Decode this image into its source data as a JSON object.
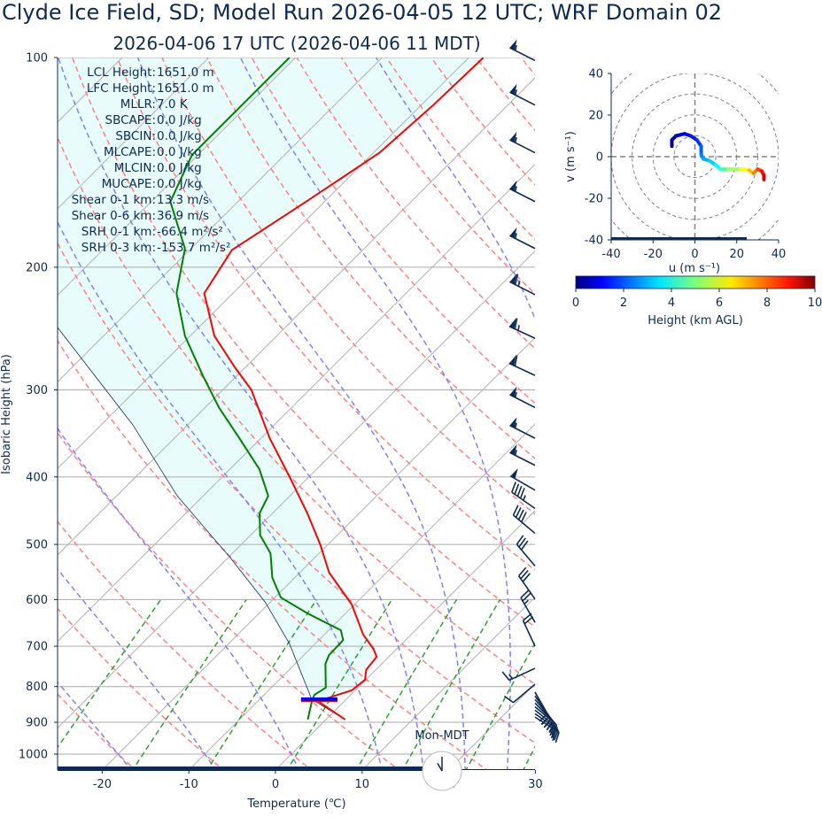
{
  "header": {
    "title": "Clyde Ice Field, SD; Model Run 2026-04-05 12 UTC; WRF Domain 02",
    "subtitle": "2026-04-06 17 UTC  (2026-04-06 11 MDT)"
  },
  "stats": [
    {
      "label": "LCL Height:",
      "value": "1651.0 m"
    },
    {
      "label": "LFC Height:",
      "value": "1651.0 m"
    },
    {
      "label": "MLLR:",
      "value": "7.0 K"
    },
    {
      "label": "SBCAPE:",
      "value": "0.0 J/kg"
    },
    {
      "label": "SBCIN:",
      "value": "0.0 J/kg"
    },
    {
      "label": "MLCAPE:",
      "value": "0.0 J/kg"
    },
    {
      "label": "MLCIN:",
      "value": "0.0 J/kg"
    },
    {
      "label": "MUCAPE:",
      "value": "0.0 J/kg"
    },
    {
      "label": "Shear 0-1 km:",
      "value": "13.3 m/s"
    },
    {
      "label": "Shear 0-6 km:",
      "value": "36.9 m/s"
    },
    {
      "label": "SRH 0-1 km:",
      "value": "-66.4 m²/s²"
    },
    {
      "label": "SRH 0-3 km:",
      "value": "-153.7 m²/s²"
    }
  ],
  "clock": {
    "label": "Mon-MDT",
    "hour": 11,
    "minute": 0
  },
  "chart_data": [
    {
      "type": "line",
      "kind": "skew-t",
      "xlabel": "Temperature (℃)",
      "ylabel": "Isobaric Height (hPa)",
      "xlim": [
        -25,
        30
      ],
      "ylim": [
        1054,
        100
      ],
      "yscale": "log",
      "xticks": [
        -20,
        -10,
        0,
        10,
        20,
        30
      ],
      "yticks": [
        100,
        200,
        300,
        400,
        500,
        600,
        700,
        800,
        900,
        1000
      ],
      "colors": {
        "temperature": "#ff0000",
        "dewpoint": "#008000",
        "parcel": "#0d2a52",
        "cin_shade": "#e8fcfc",
        "dry_adiabat": "#ff8080",
        "moist_adiabat": "#8080ff",
        "mixing_ratio": "#2ca02c",
        "isotherm": "#b0b0b0",
        "lcl_marker": "#0000ff"
      },
      "temperature": [
        [
          892,
          2.2
        ],
        [
          841,
          -2.9
        ],
        [
          834,
          -2.6
        ],
        [
          810,
          -0.4
        ],
        [
          782,
          -0.1
        ],
        [
          757,
          -1.1
        ],
        [
          725,
          -1.4
        ],
        [
          706,
          -2.7
        ],
        [
          674,
          -5.5
        ],
        [
          610,
          -10.3
        ],
        [
          549,
          -16.6
        ],
        [
          500,
          -20.9
        ],
        [
          451,
          -26.0
        ],
        [
          401,
          -32.1
        ],
        [
          352,
          -39.0
        ],
        [
          300,
          -46.7
        ],
        [
          278,
          -51.3
        ],
        [
          251,
          -57.2
        ],
        [
          218,
          -63.3
        ],
        [
          189,
          -65.1
        ],
        [
          160,
          -62.0
        ],
        [
          137,
          -59.3
        ],
        [
          117,
          -58.6
        ],
        [
          100,
          -58.3
        ]
      ],
      "dewpoint": [
        [
          892,
          -2.1
        ],
        [
          841,
          -3.7
        ],
        [
          822,
          -4.2
        ],
        [
          803,
          -3.7
        ],
        [
          742,
          -6.5
        ],
        [
          721,
          -7.1
        ],
        [
          686,
          -7.2
        ],
        [
          664,
          -8.6
        ],
        [
          628,
          -14.4
        ],
        [
          596,
          -19.3
        ],
        [
          558,
          -22.6
        ],
        [
          515,
          -25.6
        ],
        [
          485,
          -28.9
        ],
        [
          451,
          -31.5
        ],
        [
          426,
          -32.5
        ],
        [
          390,
          -36.6
        ],
        [
          352,
          -42.5
        ],
        [
          318,
          -48.4
        ],
        [
          287,
          -53.8
        ],
        [
          251,
          -60.6
        ],
        [
          218,
          -66.5
        ],
        [
          188,
          -70.7
        ],
        [
          161,
          -77.8
        ],
        [
          138,
          -80.7
        ],
        [
          115,
          -80.7
        ],
        [
          100,
          -80.7
        ]
      ],
      "parcel": [
        [
          892,
          2.2
        ],
        [
          834,
          -4.0
        ],
        [
          694,
          -13.0
        ],
        [
          605,
          -20.6
        ],
        [
          522,
          -29.8
        ],
        [
          426,
          -43.0
        ],
        [
          337,
          -56.3
        ],
        [
          244,
          -76.3
        ],
        [
          100,
          -115
        ]
      ],
      "lcl_pressure": 834,
      "mixing_ratios": [
        0.0004,
        0.001,
        0.002,
        0.004,
        0.007,
        0.01,
        0.016,
        0.024,
        0.032
      ],
      "wind_barbs": [
        {
          "p": 101,
          "speed_kt": 55,
          "dir": 297
        },
        {
          "p": 117,
          "speed_kt": 55,
          "dir": 297
        },
        {
          "p": 137,
          "speed_kt": 55,
          "dir": 297
        },
        {
          "p": 161,
          "speed_kt": 55,
          "dir": 297
        },
        {
          "p": 188,
          "speed_kt": 55,
          "dir": 297
        },
        {
          "p": 219,
          "speed_kt": 65,
          "dir": 297
        },
        {
          "p": 253,
          "speed_kt": 65,
          "dir": 295
        },
        {
          "p": 286,
          "speed_kt": 60,
          "dir": 295
        },
        {
          "p": 318,
          "speed_kt": 55,
          "dir": 297
        },
        {
          "p": 352,
          "speed_kt": 55,
          "dir": 297
        },
        {
          "p": 385,
          "speed_kt": 55,
          "dir": 297
        },
        {
          "p": 418,
          "speed_kt": 50,
          "dir": 300
        },
        {
          "p": 444,
          "speed_kt": 45,
          "dir": 305
        },
        {
          "p": 482,
          "speed_kt": 40,
          "dir": 310
        },
        {
          "p": 537,
          "speed_kt": 30,
          "dir": 320
        },
        {
          "p": 599,
          "speed_kt": 30,
          "dir": 325
        },
        {
          "p": 647,
          "speed_kt": 25,
          "dir": 330
        },
        {
          "p": 700,
          "speed_kt": 20,
          "dir": 335
        },
        {
          "p": 753,
          "speed_kt": 15,
          "dir": 245
        },
        {
          "p": 794,
          "speed_kt": 10,
          "dir": 230
        },
        {
          "p": 815,
          "speed_kt": 20,
          "dir": 150
        },
        {
          "p": 825,
          "speed_kt": 20,
          "dir": 145
        },
        {
          "p": 835,
          "speed_kt": 20,
          "dir": 140
        },
        {
          "p": 845,
          "speed_kt": 20,
          "dir": 135
        },
        {
          "p": 855,
          "speed_kt": 20,
          "dir": 130
        },
        {
          "p": 865,
          "speed_kt": 20,
          "dir": 128
        },
        {
          "p": 875,
          "speed_kt": 20,
          "dir": 125
        },
        {
          "p": 885,
          "speed_kt": 20,
          "dir": 122
        }
      ]
    },
    {
      "type": "line",
      "kind": "hodograph",
      "xlabel": "u (m s⁻¹)",
      "ylabel": "v (m s⁻¹)",
      "xlim": [
        -40,
        40
      ],
      "ylim": [
        -40,
        40
      ],
      "xticks": [
        -40,
        -20,
        0,
        20,
        40
      ],
      "yticks": [
        -40,
        -20,
        0,
        20,
        40
      ],
      "rings": [
        10,
        20,
        30,
        40,
        50
      ],
      "points": [
        {
          "u": -11,
          "v": 5,
          "h": 0
        },
        {
          "u": -11,
          "v": 8,
          "h": 0.3
        },
        {
          "u": -9,
          "v": 10,
          "h": 0.6
        },
        {
          "u": -5,
          "v": 11,
          "h": 1.0
        },
        {
          "u": -2,
          "v": 10,
          "h": 1.3
        },
        {
          "u": 1,
          "v": 8,
          "h": 1.6
        },
        {
          "u": 3,
          "v": 5,
          "h": 2.0
        },
        {
          "u": 3,
          "v": 1,
          "h": 2.4
        },
        {
          "u": 4,
          "v": -1,
          "h": 2.8
        },
        {
          "u": 7,
          "v": -2,
          "h": 3.1
        },
        {
          "u": 10,
          "v": -4,
          "h": 3.5
        },
        {
          "u": 12,
          "v": -6,
          "h": 4.0
        },
        {
          "u": 16,
          "v": -6,
          "h": 4.8
        },
        {
          "u": 22,
          "v": -6,
          "h": 5.8
        },
        {
          "u": 26,
          "v": -6.5,
          "h": 6.6
        },
        {
          "u": 28,
          "v": -8,
          "h": 7.2
        },
        {
          "u": 30,
          "v": -6,
          "h": 7.8
        },
        {
          "u": 32,
          "v": -7,
          "h": 8.4
        },
        {
          "u": 33,
          "v": -9,
          "h": 8.9
        },
        {
          "u": 33,
          "v": -11,
          "h": 9.3
        }
      ],
      "colorbar": {
        "label": "Height (km AGL)",
        "range": [
          0,
          10
        ],
        "ticks": [
          0,
          2,
          4,
          6,
          8,
          10
        ],
        "colormap": "jet"
      }
    }
  ]
}
